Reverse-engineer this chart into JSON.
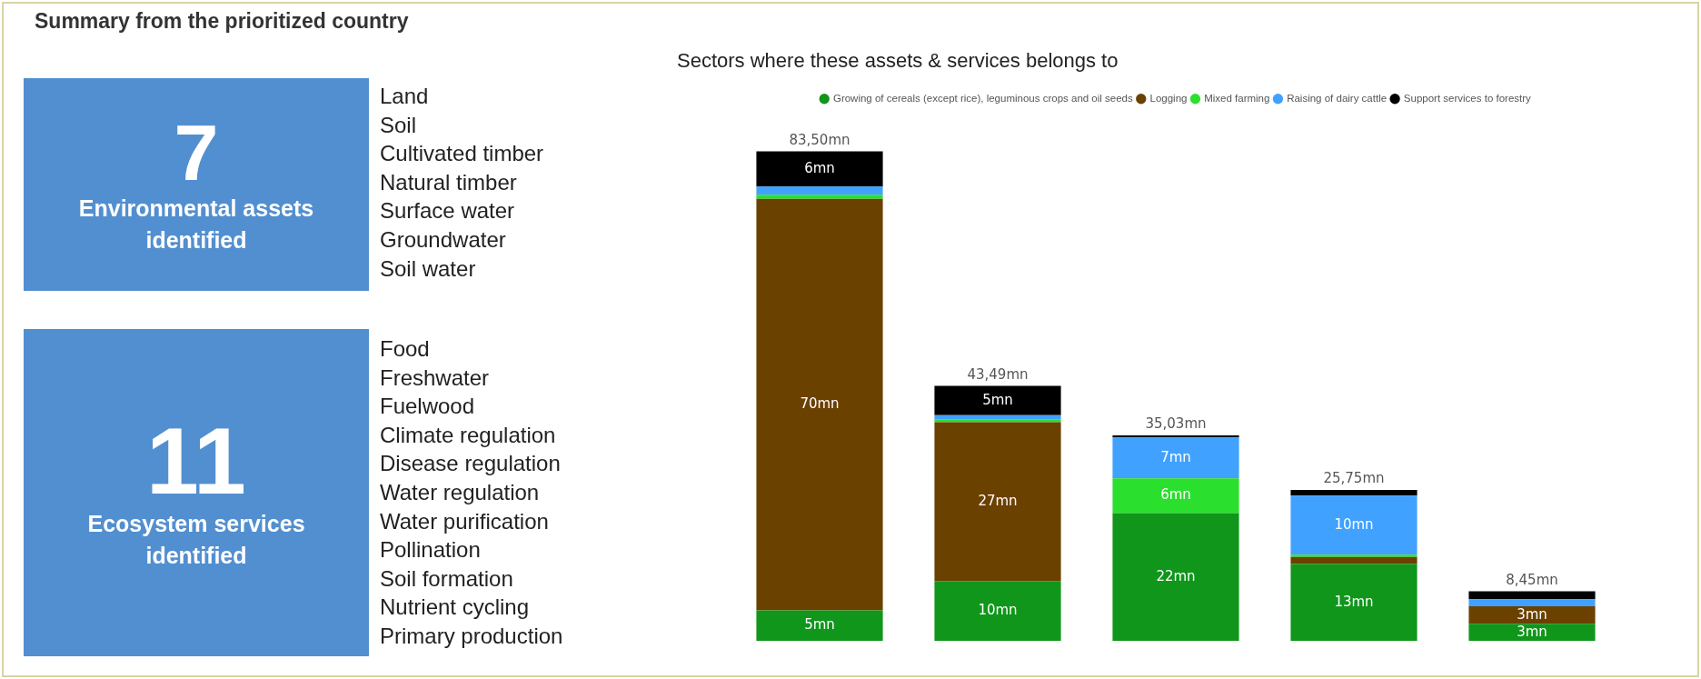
{
  "chart_data": [
    {
      "type": "other",
      "title": "Summary from the prioritized country",
      "categories": [
        "Environmental assets identified"
      ],
      "values": [
        7
      ],
      "value_labels": [
        "7"
      ],
      "color": "#528fd0",
      "annotations": [
        "Land",
        "Soil",
        "Cultivated timber",
        "Natural timber",
        "Surface water",
        "Groundwater",
        "Soil water"
      ]
    },
    {
      "type": "other",
      "categories": [
        "Ecosystem services identified"
      ],
      "values": [
        11
      ],
      "value_labels": [
        "11"
      ],
      "color": "#528fd0",
      "annotations": [
        "Food",
        "Freshwater",
        "Fuelwood",
        "Climate regulation",
        "Disease regulation",
        "Water regulation",
        "Water purification",
        "Pollination",
        "Soil formation",
        "Nutrient cycling",
        "Primary production"
      ]
    },
    {
      "type": "bar",
      "title": "Sectors where these assets & services belongs to",
      "stacked": true,
      "legend": "top",
      "categories": [
        null,
        null,
        null,
        null,
        null
      ],
      "series": [
        {
          "name": "Growing of cereals (except rice), leguminous crops and oil seeds",
          "color": "#10961b",
          "values": [
            5.2,
            10.19,
            21.8,
            13.1,
            2.9
          ],
          "value_labels": [
            "5mn",
            "10mn",
            "22mn",
            "13mn",
            "3mn"
          ]
        },
        {
          "name": "Logging",
          "color": "#6b4100",
          "values": [
            70.2,
            27.1,
            0,
            1.2,
            3.0
          ],
          "value_labels": [
            "70mn",
            "27mn",
            null,
            null,
            "3mn"
          ]
        },
        {
          "name": "Mixed farming",
          "color": "#2bdf2f",
          "values": [
            0.7,
            0.5,
            5.9,
            0.4,
            0
          ],
          "value_labels": [
            null,
            null,
            "6mn",
            null,
            null
          ]
        },
        {
          "name": "Raising of dairy cattle",
          "color": "#41a1ff",
          "values": [
            1.4,
            0.7,
            7.0,
            10.05,
            1.2
          ],
          "value_labels": [
            null,
            null,
            "7mn",
            "10mn",
            null
          ]
        },
        {
          "name": "Support services to forestry",
          "color": "#000000",
          "values": [
            6.0,
            5.0,
            0.33,
            1.0,
            1.35
          ],
          "value_labels": [
            "6mn",
            "5mn",
            null,
            null,
            null
          ]
        }
      ],
      "totals": [
        "83,50mn",
        "43,49mn",
        "35,03mn",
        "25,75mn",
        "8,45mn"
      ]
    }
  ]
}
